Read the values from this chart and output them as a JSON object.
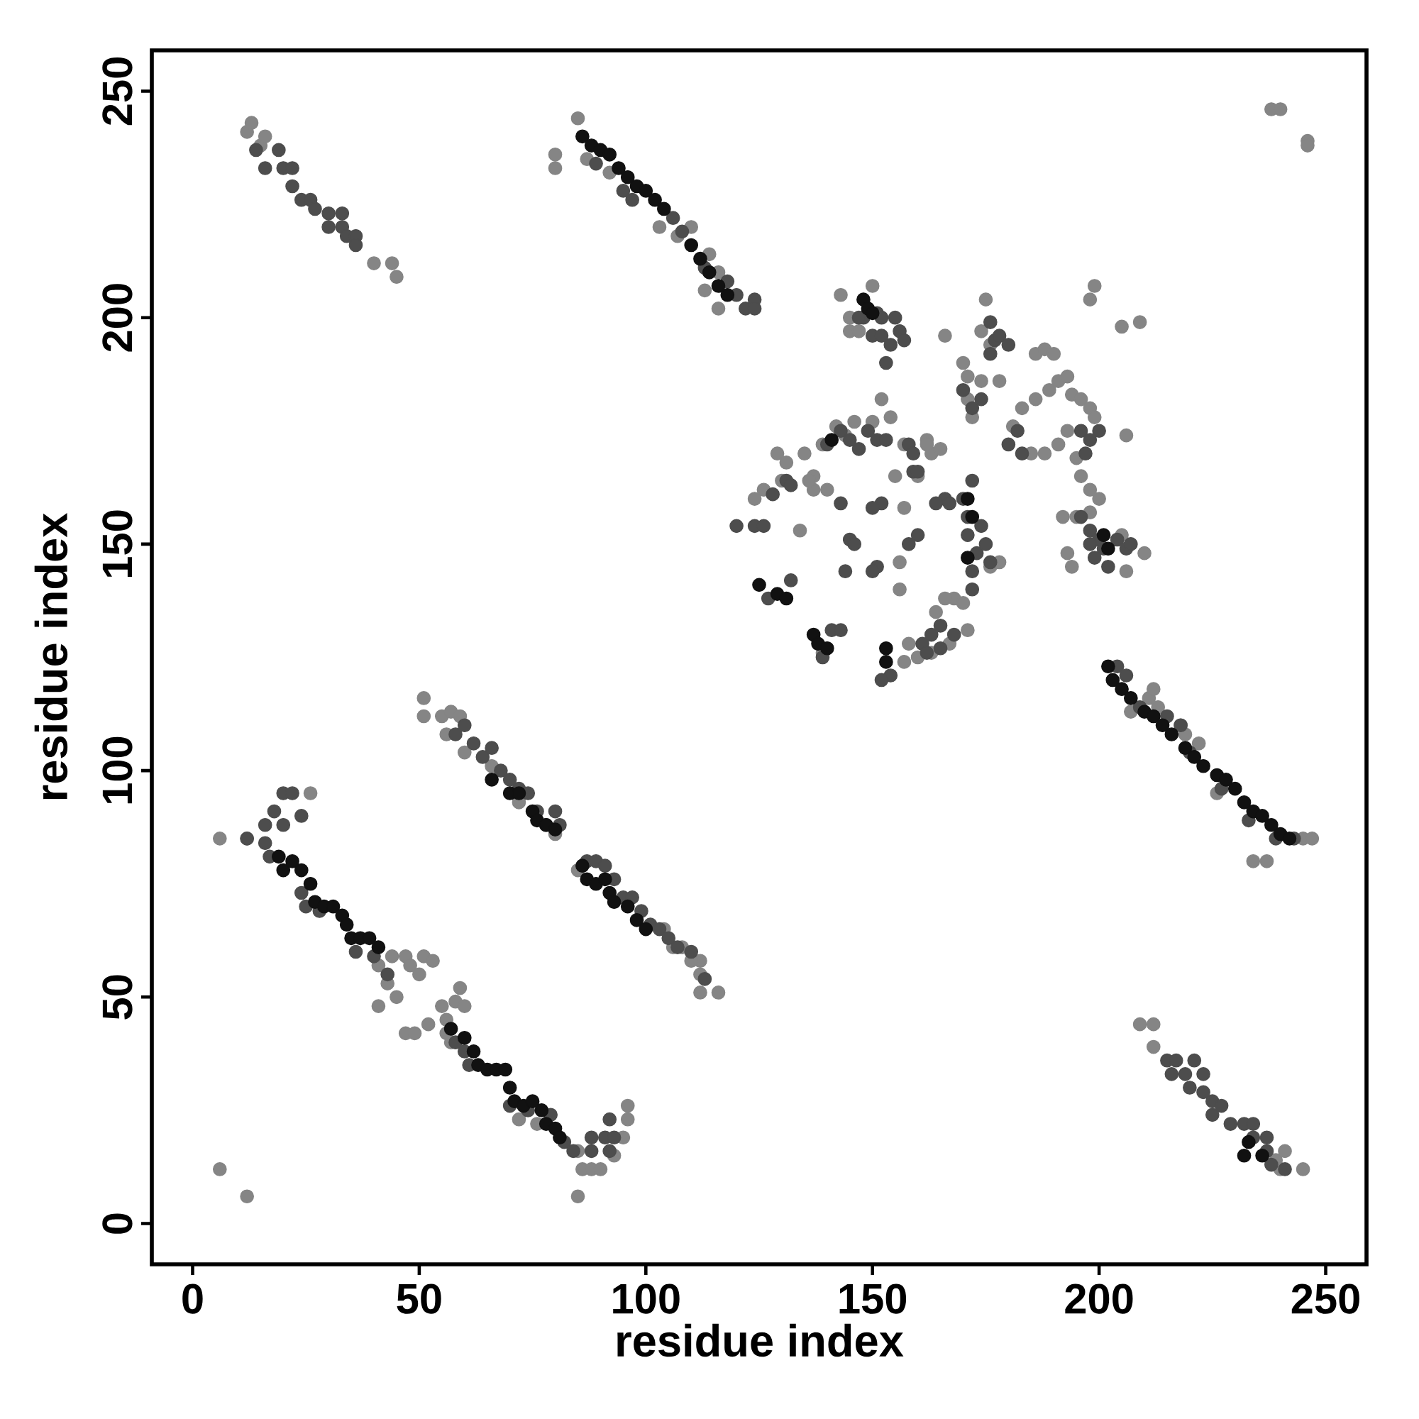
{
  "chart_data": {
    "type": "scatter",
    "xlabel": "residue index",
    "ylabel": "residue index",
    "xlim": [
      -9,
      259
    ],
    "ylim": [
      -9,
      259
    ],
    "xticks": [
      0,
      50,
      100,
      150,
      200,
      250
    ],
    "yticks": [
      0,
      50,
      100,
      150,
      200,
      250
    ],
    "grid": false,
    "marker": "circle",
    "series": [
      {
        "color": "#111111",
        "x": [
          86,
          88,
          90,
          92,
          94,
          96,
          98,
          100,
          102,
          104,
          110,
          112,
          114,
          116,
          118,
          232,
          233,
          236,
          202,
          203,
          205,
          207,
          210,
          212,
          214,
          216,
          219,
          221,
          223,
          226,
          228,
          230,
          232,
          234,
          236,
          238,
          240,
          242,
          19,
          20,
          22,
          24,
          26,
          27,
          29,
          31,
          33,
          34,
          35,
          37,
          39,
          41,
          57,
          60,
          62,
          63,
          65,
          67,
          69,
          70,
          71,
          73,
          75,
          77,
          78,
          80,
          81,
          66,
          70,
          72,
          75,
          76,
          78,
          80,
          86,
          87,
          89,
          91,
          92,
          93,
          96,
          98,
          100,
          148,
          149,
          150,
          137,
          138,
          140,
          153,
          153,
          201,
          202,
          171,
          172,
          171,
          141,
          125,
          129,
          131
        ],
        "values": [
          240,
          238,
          237,
          236,
          233,
          231,
          229,
          228,
          226,
          224,
          216,
          213,
          210,
          207,
          205,
          15,
          18,
          15,
          123,
          120,
          118,
          116,
          113,
          112,
          110,
          108,
          105,
          103,
          101,
          99,
          98,
          96,
          93,
          91,
          90,
          88,
          86,
          85,
          81,
          78,
          80,
          78,
          75,
          71,
          70,
          70,
          68,
          66,
          63,
          63,
          63,
          61,
          43,
          41,
          38,
          35,
          34,
          34,
          34,
          30,
          27,
          26,
          27,
          25,
          22,
          21,
          19,
          98,
          95,
          95,
          91,
          89,
          88,
          87,
          79,
          76,
          75,
          76,
          73,
          71,
          70,
          67,
          65,
          204,
          202,
          201,
          130,
          128,
          127,
          127,
          124,
          152,
          149,
          160,
          156,
          147,
          173,
          141,
          139,
          138
        ]
      },
      {
        "color": "#4d4d4d",
        "x": [
          14,
          16,
          19,
          20,
          22,
          22,
          24,
          26,
          27,
          30,
          30,
          33,
          34,
          36,
          36,
          33,
          89,
          95,
          97,
          106,
          108,
          113,
          118,
          120,
          122,
          124,
          124,
          215,
          217,
          216,
          219,
          221,
          220,
          223,
          223,
          225,
          225,
          227,
          229,
          232,
          234,
          234,
          237,
          237,
          238,
          241,
          204,
          206,
          209,
          215,
          218,
          220,
          227,
          233,
          239,
          243,
          17,
          24,
          25,
          28,
          36,
          40,
          43,
          58,
          60,
          61,
          70,
          74,
          79,
          82,
          84,
          12,
          16,
          18,
          20,
          22,
          24,
          16,
          20,
          88,
          88,
          91,
          92,
          93,
          92,
          58,
          60,
          62,
          64,
          66,
          68,
          70,
          72,
          74,
          76,
          78,
          80,
          81,
          87,
          89,
          91,
          93,
          95,
          97,
          99,
          101,
          103,
          105,
          107,
          110,
          113,
          120,
          124,
          126,
          127,
          132,
          139,
          141,
          143,
          128,
          131,
          132,
          140,
          143,
          145,
          147,
          149,
          151,
          153,
          148,
          151,
          152,
          147,
          150,
          152,
          155,
          156,
          153,
          157,
          154,
          152,
          150,
          151,
          150,
          154,
          152,
          158,
          159,
          159,
          160,
          160,
          158,
          166,
          164,
          167,
          170,
          172,
          171,
          171,
          172,
          172,
          173,
          175,
          174,
          176,
          165,
          163,
          161,
          162,
          165,
          168,
          170,
          172,
          174,
          176,
          177,
          178,
          180,
          176,
          180,
          182,
          183,
          196,
          198,
          200,
          197,
          196,
          198,
          200,
          201,
          204,
          206,
          207,
          198,
          199,
          202,
          143,
          145,
          146,
          144
        ],
        "values": [
          237,
          233,
          237,
          233,
          233,
          229,
          226,
          226,
          224,
          223,
          220,
          220,
          218,
          218,
          216,
          223,
          234,
          228,
          226,
          222,
          219,
          211,
          208,
          205,
          202,
          204,
          202,
          36,
          36,
          33,
          33,
          36,
          30,
          33,
          29,
          27,
          24,
          26,
          22,
          22,
          22,
          19,
          19,
          16,
          13,
          12,
          123,
          121,
          114,
          112,
          110,
          104,
          96,
          89,
          85,
          85,
          81,
          73,
          70,
          69,
          60,
          59,
          55,
          40,
          38,
          35,
          26,
          25,
          24,
          18,
          16,
          85,
          88,
          91,
          95,
          95,
          90,
          84,
          88,
          19,
          16,
          19,
          16,
          19,
          23,
          108,
          110,
          106,
          103,
          105,
          100,
          98,
          96,
          95,
          91,
          88,
          91,
          88,
          80,
          80,
          79,
          76,
          72,
          72,
          69,
          66,
          65,
          63,
          61,
          60,
          54,
          154,
          154,
          154,
          138,
          142,
          125,
          131,
          131,
          161,
          164,
          163,
          172,
          175,
          173,
          171,
          175,
          173,
          173,
          200,
          201,
          200,
          200,
          196,
          196,
          200,
          197,
          190,
          195,
          194,
          159,
          158,
          145,
          144,
          121,
          120,
          172,
          170,
          166,
          166,
          152,
          150,
          160,
          159,
          159,
          160,
          164,
          156,
          152,
          144,
          140,
          148,
          150,
          154,
          146,
          132,
          130,
          128,
          126,
          127,
          130,
          184,
          180,
          182,
          199,
          195,
          196,
          194,
          192,
          172,
          175,
          170,
          175,
          173,
          175,
          170,
          156,
          153,
          151,
          149,
          151,
          149,
          150,
          150,
          147,
          145,
          159,
          151,
          150,
          144
        ]
      },
      {
        "color": "#858585",
        "x": [
          12,
          13,
          15,
          44,
          45,
          40,
          16,
          80,
          85,
          87,
          92,
          103,
          107,
          110,
          114,
          116,
          116,
          113,
          80,
          238,
          240,
          246,
          246,
          209,
          212,
          212,
          239,
          241,
          245,
          240,
          207,
          211,
          213,
          218,
          222,
          226,
          234,
          237,
          245,
          247,
          212,
          219,
          41,
          43,
          45,
          41,
          44,
          47,
          48,
          50,
          51,
          53,
          47,
          49,
          52,
          55,
          56,
          58,
          59,
          60,
          56,
          57,
          72,
          76,
          85,
          86,
          88,
          85,
          6,
          12,
          6,
          12,
          26,
          95,
          96,
          96,
          90,
          93,
          51,
          51,
          55,
          57,
          59,
          56,
          60,
          66,
          72,
          80,
          85,
          106,
          112,
          112,
          112,
          116,
          110,
          104,
          108,
          124,
          126,
          129,
          131,
          137,
          137,
          142,
          144,
          146,
          150,
          157,
          162,
          163,
          165,
          166,
          171,
          170,
          171,
          172,
          174,
          175,
          174,
          176,
          178,
          181,
          183,
          186,
          188,
          190,
          186,
          189,
          191,
          193,
          194,
          196,
          198,
          199,
          193,
          195,
          196,
          192,
          195,
          193,
          194,
          205,
          206,
          210,
          198,
          199,
          205,
          209,
          206,
          185,
          188,
          191,
          168,
          171,
          166,
          164,
          160,
          157,
          158,
          156,
          156,
          157,
          155,
          152,
          160,
          143,
          145,
          147,
          139,
          136,
          134,
          135,
          150,
          145,
          200,
          198,
          198,
          176,
          178,
          170,
          167,
          163,
          139,
          130,
          140,
          154,
          162
        ],
        "values": [
          241,
          243,
          238,
          212,
          209,
          212,
          240,
          236,
          244,
          235,
          232,
          220,
          218,
          220,
          214,
          210,
          202,
          206,
          233,
          246,
          246,
          239,
          238,
          44,
          44,
          39,
          14,
          16,
          12,
          12,
          113,
          116,
          114,
          110,
          106,
          95,
          80,
          80,
          85,
          85,
          118,
          108,
          57,
          53,
          50,
          48,
          59,
          59,
          57,
          55,
          59,
          58,
          42,
          42,
          44,
          48,
          45,
          49,
          52,
          48,
          42,
          40,
          23,
          22,
          16,
          12,
          12,
          6,
          12,
          6,
          85,
          85,
          95,
          19,
          23,
          26,
          12,
          15,
          116,
          112,
          112,
          113,
          112,
          108,
          104,
          101,
          93,
          86,
          78,
          61,
          58,
          55,
          51,
          51,
          58,
          65,
          61,
          160,
          162,
          170,
          168,
          165,
          162,
          176,
          174,
          177,
          177,
          172,
          173,
          170,
          171,
          196,
          187,
          190,
          182,
          178,
          186,
          204,
          197,
          194,
          186,
          176,
          180,
          192,
          193,
          192,
          182,
          184,
          186,
          187,
          183,
          182,
          180,
          178,
          175,
          169,
          165,
          156,
          156,
          148,
          145,
          152,
          144,
          148,
          204,
          207,
          198,
          199,
          174,
          170,
          170,
          172,
          138,
          131,
          138,
          135,
          125,
          124,
          128,
          140,
          146,
          158,
          165,
          182,
          165,
          205,
          197,
          197,
          172,
          164,
          153,
          170,
          207,
          200,
          160,
          162,
          157,
          145,
          146,
          137,
          128,
          126,
          126,
          164,
          162,
          178,
          172
        ]
      }
    ]
  }
}
